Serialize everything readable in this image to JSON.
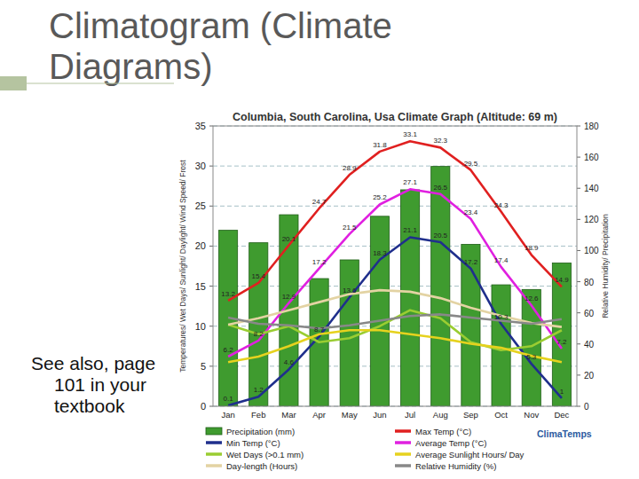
{
  "slide": {
    "title": "Climatogram (Climate Diagrams)",
    "note": "See also, page 101 in your textbook"
  },
  "chart_data": {
    "type": "combo",
    "title": "Columbia, South Carolina, Usa Climate Graph (Altitude: 69 m)",
    "ylabel": "Temperatures/ Wet Days/ Sunlight/ Daylight/ Wind Speed/ Frost",
    "y2label": "Relative Humidity/ Precipitation",
    "annotations": [
      "ClimaTemps"
    ],
    "categories": [
      "Jan",
      "Feb",
      "Mar",
      "Apr",
      "May",
      "Jun",
      "Jul",
      "Aug",
      "Sep",
      "Oct",
      "Nov",
      "Dec"
    ],
    "ylim": [
      0,
      35
    ],
    "yticks": [
      0,
      5,
      10,
      15,
      20,
      25,
      30,
      35
    ],
    "y2lim": [
      0,
      180
    ],
    "y2ticks": [
      0,
      20,
      40,
      60,
      80,
      100,
      120,
      140,
      160,
      180
    ],
    "grid": true,
    "legend": "bottom",
    "series": [
      {
        "name": "Precipitation (mm)",
        "type": "bar",
        "axis": "y2",
        "color": "#3f9b2f",
        "values": [
          113,
          105,
          123,
          82,
          94,
          122,
          139,
          154,
          104,
          78,
          75,
          92
        ]
      },
      {
        "name": "Max Temp (°C)",
        "type": "line",
        "color": "#e02020",
        "data_labels": true,
        "values": [
          13.2,
          15.4,
          20.1,
          24.7,
          28.9,
          31.8,
          33.1,
          32.3,
          29.5,
          24.3,
          18.9,
          14.9
        ]
      },
      {
        "name": "Min Temp (°C)",
        "type": "line",
        "color": "#1f2f8c",
        "data_labels": true,
        "values": [
          0.1,
          1.2,
          4.6,
          8.7,
          13.6,
          18.3,
          21.1,
          20.5,
          17.2,
          10.3,
          5.3,
          1.0
        ]
      },
      {
        "name": "Average Temp (°C)",
        "type": "line",
        "color": "#e020e0",
        "data_labels": true,
        "values": [
          6.2,
          8.2,
          12.9,
          17.2,
          21.5,
          25.2,
          27.1,
          26.5,
          23.4,
          17.4,
          12.6,
          7.2
        ]
      },
      {
        "name": "Wet Days (>0.1 mm)",
        "type": "line",
        "color": "#9acd32",
        "values": [
          10.2,
          9.0,
          10.0,
          8.0,
          8.5,
          10.0,
          12.0,
          11.0,
          8.0,
          7.0,
          7.5,
          9.5
        ]
      },
      {
        "name": "Average Sunlight Hours/ Day",
        "type": "line",
        "color": "#e6d21e",
        "values": [
          5.5,
          6.2,
          7.5,
          9.0,
          9.5,
          9.5,
          9.0,
          8.5,
          7.8,
          7.3,
          6.3,
          5.5
        ]
      },
      {
        "name": "Day-length (Hours)",
        "type": "line",
        "color": "#e3d3a3",
        "values": [
          10.2,
          11.0,
          12.0,
          13.0,
          14.0,
          14.5,
          14.3,
          13.5,
          12.3,
          11.3,
          10.4,
          9.9
        ]
      },
      {
        "name": "Relative Humidity (%)",
        "type": "line",
        "axis": "y2",
        "color": "#888888",
        "values": [
          57,
          53,
          52,
          50,
          52,
          55,
          58,
          59,
          57,
          55,
          53,
          56
        ]
      }
    ]
  }
}
